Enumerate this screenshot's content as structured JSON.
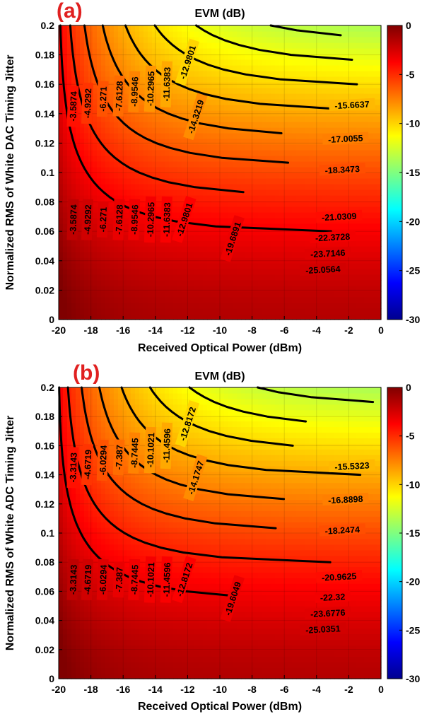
{
  "chart_data": [
    {
      "type": "heatmap",
      "panel_label": "(a)",
      "title": "EVM (dB)",
      "xlabel": "Received Optical Power (dBm)",
      "ylabel": "Normalized RMS of White DAC Timing Jitter",
      "xlim": [
        -20,
        0
      ],
      "ylim": [
        0,
        0.2
      ],
      "x_ticks": [
        "-20",
        "-18",
        "-16",
        "-14",
        "-12",
        "-10",
        "-8",
        "-6",
        "-4",
        "-2",
        "0"
      ],
      "y_ticks": [
        "0",
        "0.02",
        "0.04",
        "0.06",
        "0.08",
        "0.1",
        "0.12",
        "0.14",
        "0.16",
        "0.18",
        "0.2"
      ],
      "colorbar": {
        "min": -30,
        "max": 0,
        "ticks": [
          "0",
          "-5",
          "-10",
          "-15",
          "-20",
          "-25",
          "-30"
        ],
        "colormap": "jet"
      },
      "grid": true,
      "contour_labels_left": [
        "-3.5874",
        "-4.9292",
        "-6.271",
        "-7.6128",
        "-8.9546",
        "-10.2965",
        "-11.6383",
        "-12.9801"
      ],
      "contour_labels_right": [
        "-14.3219",
        "-15.6637",
        "-17.0055",
        "-18.3473",
        "-19.6891",
        "-21.0309",
        "-22.3728",
        "-23.7146",
        "-25.0564"
      ]
    },
    {
      "type": "heatmap",
      "panel_label": "(b)",
      "title": "EVM (dB)",
      "xlabel": "Received Optical Power (dBm)",
      "ylabel": "Normalized RMS of White ADC Timing Jitter",
      "xlim": [
        -20,
        0
      ],
      "ylim": [
        0,
        0.2
      ],
      "x_ticks": [
        "-20",
        "-18",
        "-16",
        "-14",
        "-12",
        "-10",
        "-8",
        "-6",
        "-4",
        "-2",
        "0"
      ],
      "y_ticks": [
        "0",
        "0.02",
        "0.04",
        "0.06",
        "0.08",
        "0.1",
        "0.12",
        "0.14",
        "0.16",
        "0.18",
        "0.2"
      ],
      "colorbar": {
        "min": -30,
        "max": 0,
        "ticks": [
          "0",
          "-5",
          "-10",
          "-15",
          "-20",
          "-25",
          "-30"
        ],
        "colormap": "jet"
      },
      "grid": true,
      "contour_labels_left": [
        "-3.3143",
        "-4.6719",
        "-6.0294",
        "-7.387",
        "-8.7445",
        "-10.1021",
        "-11.4596",
        "-12.8172"
      ],
      "contour_labels_right": [
        "-14.1747",
        "-15.5323",
        "-16.8898",
        "-18.2474",
        "-19.6049",
        "-20.9625",
        "-22.32",
        "-23.6776",
        "-25.0351"
      ]
    }
  ]
}
